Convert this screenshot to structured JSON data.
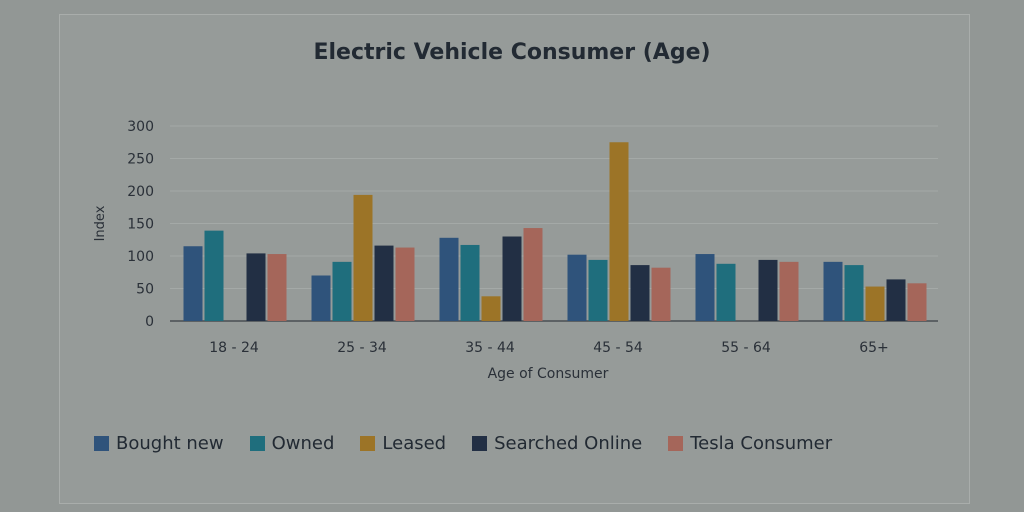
{
  "chart_data": {
    "type": "bar",
    "title": "Electric Vehicle Consumer (Age)",
    "xlabel": "Age of Consumer",
    "ylabel": "Index",
    "ylim": [
      0,
      300
    ],
    "yticks": [
      0,
      50,
      100,
      150,
      200,
      250,
      300
    ],
    "categories": [
      "18 - 24",
      "25 - 34",
      "35 - 44",
      "45 - 54",
      "55 - 64",
      "65+"
    ],
    "series": [
      {
        "name": "Bought new",
        "color": "#2f537b",
        "values": [
          115,
          70,
          128,
          102,
          103,
          91
        ]
      },
      {
        "name": "Owned",
        "color": "#1f6e7d",
        "values": [
          139,
          91,
          117,
          94,
          88,
          86
        ]
      },
      {
        "name": "Leased",
        "color": "#9c7427",
        "values": [
          0,
          194,
          38,
          275,
          0,
          53
        ]
      },
      {
        "name": "Searched Online",
        "color": "#222f44",
        "values": [
          104,
          116,
          130,
          86,
          94,
          64
        ]
      },
      {
        "name": "Tesla Consumer",
        "color": "#a5665a",
        "values": [
          103,
          113,
          143,
          82,
          91,
          58
        ]
      }
    ],
    "grid": true,
    "legend_position": "bottom"
  }
}
